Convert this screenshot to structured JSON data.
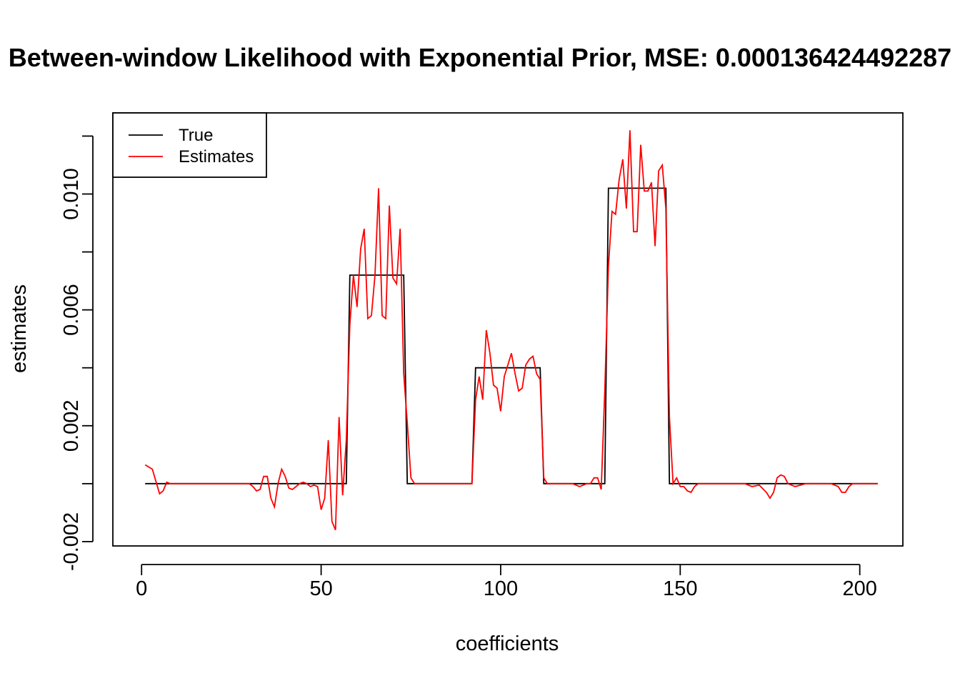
{
  "chart_data": {
    "type": "line",
    "title": "Between-window Likelihood with Exponential Prior, MSE: 0.000136424492287",
    "xlabel": "coefficients",
    "ylabel": "estimates",
    "xlim": [
      -8,
      212
    ],
    "ylim": [
      -0.00215,
      0.0128
    ],
    "x_ticks": [
      0,
      50,
      100,
      150,
      200
    ],
    "x_tick_labels": [
      "0",
      "50",
      "100",
      "150",
      "200"
    ],
    "y_ticks": [
      -0.002,
      0,
      0.002,
      0.004,
      0.006,
      0.008,
      0.01,
      0.012
    ],
    "y_tick_labels": [
      "-0.002",
      "0.002",
      "0.006",
      "0.010"
    ],
    "y_labeled_ticks": [
      -0.002,
      0.002,
      0.006,
      0.01
    ],
    "legend": {
      "position": "top-left",
      "entries": [
        {
          "label": "True",
          "color": "#000000"
        },
        {
          "label": "Estimates",
          "color": "#ff0000"
        }
      ]
    },
    "true_steps": [
      {
        "x": 1,
        "y": 0
      },
      {
        "x": 57,
        "y": 0
      },
      {
        "x": 58,
        "y": 0.0072
      },
      {
        "x": 73,
        "y": 0.0072
      },
      {
        "x": 74,
        "y": 0
      },
      {
        "x": 92,
        "y": 0
      },
      {
        "x": 93,
        "y": 0.004
      },
      {
        "x": 111,
        "y": 0.004
      },
      {
        "x": 112,
        "y": 0
      },
      {
        "x": 129,
        "y": 0
      },
      {
        "x": 130,
        "y": 0.0102
      },
      {
        "x": 146,
        "y": 0.0102
      },
      {
        "x": 147,
        "y": 0
      },
      {
        "x": 205,
        "y": 0
      }
    ],
    "series": [
      {
        "name": "Estimates",
        "color": "#ff0000",
        "points": [
          [
            1,
            0.00065
          ],
          [
            3,
            0.0005
          ],
          [
            5,
            -0.00035
          ],
          [
            6,
            -0.00025
          ],
          [
            7,
            5e-05
          ],
          [
            8,
            0.0
          ],
          [
            20,
            0.0
          ],
          [
            30,
            0.0
          ],
          [
            31,
            -0.0001
          ],
          [
            32,
            -0.00025
          ],
          [
            33,
            -0.0002
          ],
          [
            34,
            0.00025
          ],
          [
            35,
            0.00025
          ],
          [
            36,
            -0.0005
          ],
          [
            37,
            -0.0008
          ],
          [
            38,
            0.0
          ],
          [
            39,
            0.0005
          ],
          [
            40,
            0.00025
          ],
          [
            41,
            -0.00015
          ],
          [
            42,
            -0.0002
          ],
          [
            43,
            -0.0001
          ],
          [
            44,
            0.0
          ],
          [
            45,
            5e-05
          ],
          [
            46,
            0.0
          ],
          [
            47,
            -0.0001
          ],
          [
            48,
            -5e-05
          ],
          [
            49,
            -0.0001
          ],
          [
            50,
            -0.0009
          ],
          [
            51,
            -0.0005
          ],
          [
            52,
            0.0015
          ],
          [
            53,
            -0.0013
          ],
          [
            54,
            -0.0016
          ],
          [
            55,
            0.0023
          ],
          [
            56,
            -0.0004
          ],
          [
            57,
            0.0015
          ],
          [
            58,
            0.0055
          ],
          [
            59,
            0.0072
          ],
          [
            60,
            0.0061
          ],
          [
            61,
            0.0081
          ],
          [
            62,
            0.0088
          ],
          [
            63,
            0.0057
          ],
          [
            64,
            0.0058
          ],
          [
            65,
            0.0072
          ],
          [
            66,
            0.0102
          ],
          [
            67,
            0.0058
          ],
          [
            68,
            0.0057
          ],
          [
            69,
            0.0096
          ],
          [
            70,
            0.0071
          ],
          [
            71,
            0.0069
          ],
          [
            72,
            0.0088
          ],
          [
            73,
            0.0038
          ],
          [
            74,
            0.0021
          ],
          [
            75,
            0.0002
          ],
          [
            76,
            0.0
          ],
          [
            80,
            0.0
          ],
          [
            90,
            0.0
          ],
          [
            92,
            0.0
          ],
          [
            93,
            0.0029
          ],
          [
            94,
            0.0037
          ],
          [
            95,
            0.0029
          ],
          [
            96,
            0.0053
          ],
          [
            97,
            0.0045
          ],
          [
            98,
            0.0034
          ],
          [
            99,
            0.0033
          ],
          [
            100,
            0.0025
          ],
          [
            101,
            0.0037
          ],
          [
            102,
            0.0041
          ],
          [
            103,
            0.0045
          ],
          [
            104,
            0.0038
          ],
          [
            105,
            0.0032
          ],
          [
            106,
            0.0033
          ],
          [
            107,
            0.0041
          ],
          [
            108,
            0.0043
          ],
          [
            109,
            0.0044
          ],
          [
            110,
            0.0038
          ],
          [
            111,
            0.0036
          ],
          [
            112,
            0.0002
          ],
          [
            113,
            0.0
          ],
          [
            120,
            0.0
          ],
          [
            122,
            -0.0001
          ],
          [
            124,
            0.0
          ],
          [
            125,
            0.0
          ],
          [
            126,
            0.0002
          ],
          [
            127,
            0.0002
          ],
          [
            128,
            -0.0002
          ],
          [
            129,
            0.0032
          ],
          [
            130,
            0.0075
          ],
          [
            131,
            0.0094
          ],
          [
            132,
            0.0093
          ],
          [
            133,
            0.0105
          ],
          [
            134,
            0.0112
          ],
          [
            135,
            0.0095
          ],
          [
            136,
            0.0122
          ],
          [
            137,
            0.0087
          ],
          [
            138,
            0.0087
          ],
          [
            139,
            0.0117
          ],
          [
            140,
            0.0101
          ],
          [
            141,
            0.0101
          ],
          [
            142,
            0.0104
          ],
          [
            143,
            0.0082
          ],
          [
            144,
            0.0108
          ],
          [
            145,
            0.011
          ],
          [
            146,
            0.0095
          ],
          [
            147,
            0.0023
          ],
          [
            148,
            0.0
          ],
          [
            149,
            0.0002
          ],
          [
            150,
            -0.0001
          ],
          [
            151,
            -0.0001
          ],
          [
            152,
            -0.00025
          ],
          [
            153,
            -0.0003
          ],
          [
            154,
            -0.0001
          ],
          [
            155,
            0.0
          ],
          [
            160,
            0.0
          ],
          [
            165,
            0.0
          ],
          [
            168,
            0.0
          ],
          [
            170,
            -0.0001
          ],
          [
            172,
            -5e-05
          ],
          [
            174,
            -0.0003
          ],
          [
            175,
            -0.0005
          ],
          [
            176,
            -0.0003
          ],
          [
            177,
            0.0002
          ],
          [
            178,
            0.0003
          ],
          [
            179,
            0.00025
          ],
          [
            180,
            0.0
          ],
          [
            182,
            -0.0001
          ],
          [
            185,
            0.0
          ],
          [
            190,
            0.0
          ],
          [
            192,
            0.0
          ],
          [
            194,
            -0.0001
          ],
          [
            195,
            -0.0003
          ],
          [
            196,
            -0.0003
          ],
          [
            197,
            -0.0001
          ],
          [
            198,
            0.0
          ],
          [
            200,
            0.0
          ],
          [
            205,
            0.0
          ]
        ]
      }
    ]
  }
}
